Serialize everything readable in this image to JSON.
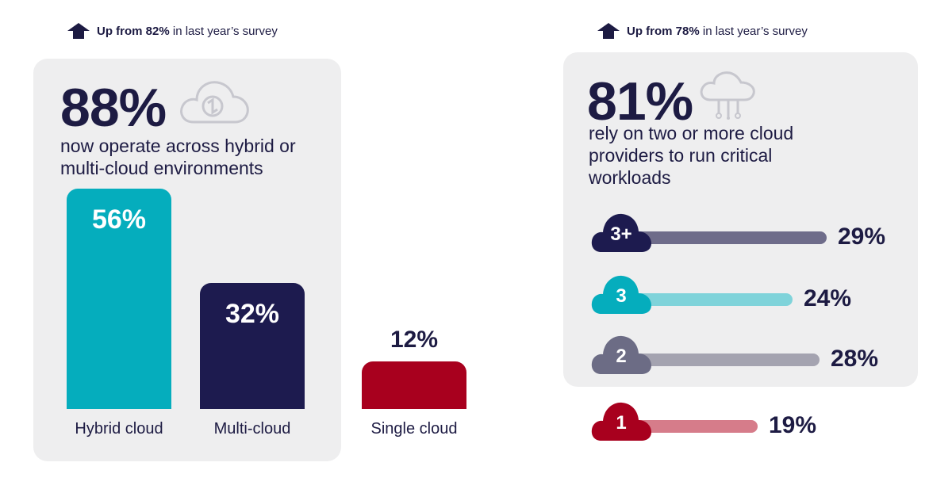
{
  "left": {
    "note": {
      "prefix": "Up from 82%",
      "suffix": " in last year’s survey"
    },
    "headline": "88%",
    "headline_desc": "now operate across hybrid or multi-cloud environments"
  },
  "right": {
    "note": {
      "prefix": "Up from 78%",
      "suffix": " in last year’s survey"
    },
    "headline": "81%",
    "headline_desc": "rely on two or more cloud providers to run critical workloads"
  },
  "colors": {
    "teal": "#05adbd",
    "navy": "#1d1b4f",
    "red": "#a8001e",
    "gray": "#6c6c85"
  },
  "chart_data": [
    {
      "type": "bar",
      "categories": [
        "Hybrid cloud",
        "Multi-cloud",
        "Single cloud"
      ],
      "values": [
        56,
        32,
        12
      ],
      "value_labels": [
        "56%",
        "32%",
        "12%"
      ],
      "ylim": [
        0,
        56
      ]
    },
    {
      "type": "bar",
      "orientation": "horizontal",
      "categories": [
        "3+",
        "3",
        "2",
        "1"
      ],
      "values": [
        29,
        24,
        28,
        19
      ],
      "value_labels": [
        "29%",
        "24%",
        "28%",
        "19%"
      ],
      "xlim": [
        0,
        29
      ]
    }
  ]
}
